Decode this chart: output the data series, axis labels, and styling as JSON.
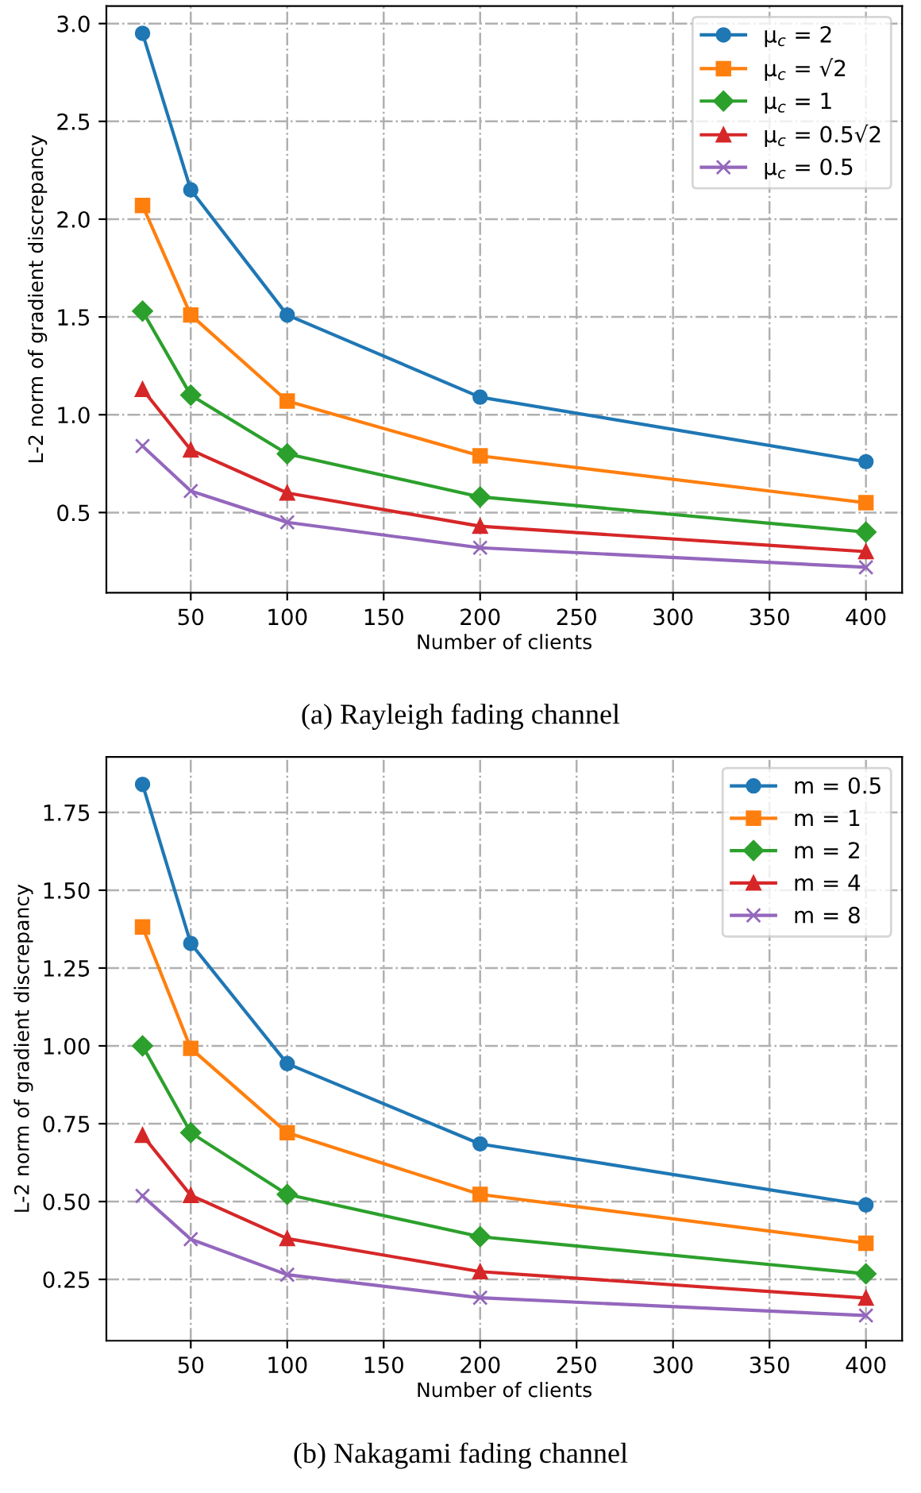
{
  "chart_data": [
    {
      "type": "line",
      "xlabel": "Number of clients",
      "ylabel": "L-2 norm of gradient discrepancy",
      "x": [
        25,
        50,
        100,
        200,
        400
      ],
      "series": [
        {
          "name": "μ$_{c}$ = 2",
          "color": "#1f77b4",
          "marker": "circle",
          "values": [
            2.95,
            2.15,
            1.51,
            1.09,
            0.76
          ]
        },
        {
          "name": "μ$_{c}$ = √2",
          "color": "#ff7f0e",
          "marker": "square",
          "values": [
            2.07,
            1.51,
            1.07,
            0.79,
            0.55
          ]
        },
        {
          "name": "μ$_{c}$ = 1",
          "color": "#2ca02c",
          "marker": "diamond",
          "values": [
            1.53,
            1.1,
            0.8,
            0.58,
            0.4
          ]
        },
        {
          "name": "μ$_{c}$ = 0.5√2",
          "color": "#d62728",
          "marker": "triangle",
          "values": [
            1.13,
            0.82,
            0.6,
            0.43,
            0.3
          ]
        },
        {
          "name": "μ$_{c}$ = 0.5",
          "color": "#9467bd",
          "marker": "cross",
          "values": [
            0.84,
            0.61,
            0.45,
            0.32,
            0.22
          ]
        }
      ],
      "xlim": [
        6.25,
        418.75
      ],
      "xticks": [
        50,
        100,
        150,
        200,
        250,
        300,
        350,
        400
      ],
      "ylim": [
        0.09,
        3.09
      ],
      "yticks": [
        0.5,
        {
          "value": 1,
          "label": "1.0"
        },
        1.5,
        {
          "value": 2,
          "label": "2.0"
        },
        2.5,
        {
          "value": 3,
          "label": "3.0"
        }
      ],
      "grid": true,
      "legend": "top right",
      "line_style": "solid",
      "annotations": [
        "(a) Rayleigh fading channel"
      ]
    },
    {
      "type": "line",
      "xlabel": "Number of clients",
      "ylabel": "L-2 norm of gradient discrepancy",
      "x": [
        25,
        50,
        100,
        200,
        400
      ],
      "series": [
        {
          "name": "m = 0.5",
          "color": "#1f77b4",
          "marker": "circle",
          "values": [
            1.84,
            1.329,
            0.943,
            0.685,
            0.489
          ]
        },
        {
          "name": "m = 1",
          "color": "#ff7f0e",
          "marker": "square",
          "values": [
            1.382,
            0.992,
            0.721,
            0.523,
            0.366
          ]
        },
        {
          "name": "m = 2",
          "color": "#2ca02c",
          "marker": "diamond",
          "values": [
            1.0,
            0.721,
            0.523,
            0.387,
            0.268
          ]
        },
        {
          "name": "m = 4",
          "color": "#d62728",
          "marker": "triangle",
          "values": [
            0.713,
            0.52,
            0.381,
            0.275,
            0.19
          ]
        },
        {
          "name": "m = 8",
          "color": "#9467bd",
          "marker": "cross",
          "values": [
            0.518,
            0.379,
            0.265,
            0.191,
            0.134
          ]
        }
      ],
      "xlim": [
        6.25,
        418.75
      ],
      "xticks": [
        50,
        100,
        150,
        200,
        250,
        300,
        350,
        400
      ],
      "ylim": [
        0.053,
        1.928
      ],
      "yticks": [
        0.25,
        {
          "value": 0.5,
          "label": "0.50"
        },
        0.75,
        {
          "value": 1,
          "label": "1.00"
        },
        1.25,
        {
          "value": 1.5,
          "label": "1.50"
        },
        1.75
      ],
      "grid": true,
      "legend": "top right",
      "line_style": "solid",
      "annotations": [
        "(b) Nakagami fading channel"
      ]
    }
  ]
}
